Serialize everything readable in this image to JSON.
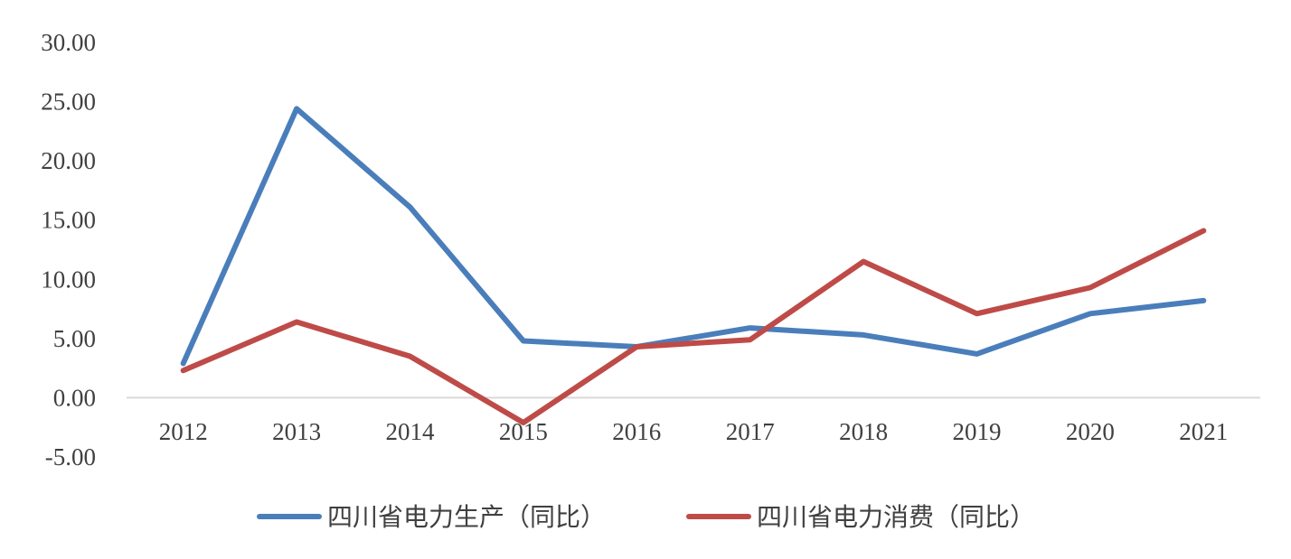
{
  "chart_data": {
    "type": "line",
    "title": "",
    "xlabel": "",
    "ylabel": "",
    "categories": [
      "2012",
      "2013",
      "2014",
      "2015",
      "2016",
      "2017",
      "2018",
      "2019",
      "2020",
      "2021"
    ],
    "y_ticks": [
      "30.00",
      "25.00",
      "20.00",
      "15.00",
      "10.00",
      "5.00",
      "0.00",
      "-5.00"
    ],
    "y_tick_values": [
      30,
      25,
      20,
      15,
      10,
      5,
      0,
      -5
    ],
    "ylim": [
      -5,
      30
    ],
    "grid": false,
    "legend_position": "bottom",
    "series": [
      {
        "name": "四川省电力生产（同比）",
        "color": "#4a7ebb",
        "values": [
          2.9,
          24.4,
          16.1,
          4.8,
          4.3,
          5.9,
          5.3,
          3.7,
          7.1,
          8.2
        ]
      },
      {
        "name": "四川省电力消费（同比）",
        "color": "#be4b48",
        "values": [
          2.3,
          6.4,
          3.5,
          -2.1,
          4.3,
          4.9,
          11.5,
          7.1,
          9.3,
          14.1
        ]
      }
    ]
  }
}
